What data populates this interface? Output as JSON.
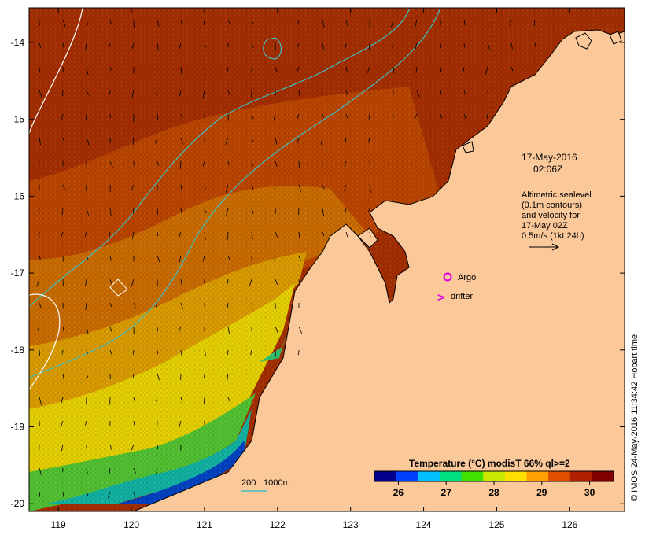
{
  "map": {
    "x_ticks": [
      "119",
      "120",
      "121",
      "122",
      "123",
      "124",
      "125",
      "126"
    ],
    "y_ticks": [
      "-14",
      "-15",
      "-16",
      "-17",
      "-18",
      "-19",
      "-20"
    ],
    "lon_range": [
      118.6,
      126.75
    ],
    "lat_range": [
      -20.1,
      -13.55
    ]
  },
  "annotation": {
    "date": "17-May-2016",
    "time": "02:06Z",
    "altimetry_lines": [
      "Altimetric sealevel",
      "(0.1m contours)",
      "and velocity for",
      "17-May 02Z",
      "0.5m/s (1kt 24h)"
    ]
  },
  "legend": {
    "argo_label": "Argo",
    "argo_color": "#e000e0",
    "drifter_symbol": ">",
    "drifter_label": "drifter",
    "drifter_color": "#e000e0",
    "bathy_label_200": "200",
    "bathy_label_1000": "1000m"
  },
  "colorbar": {
    "title": "Temperature  (°C) modisT 66% ql>=2",
    "ticks": [
      "26",
      "27",
      "28",
      "29",
      "30"
    ],
    "tick_values": [
      26,
      27,
      28,
      29,
      30
    ],
    "range": [
      25.5,
      30.5
    ],
    "colors": [
      "#00008b",
      "#0040ff",
      "#00c0ff",
      "#00e080",
      "#40e000",
      "#c8e800",
      "#ffe000",
      "#ffa000",
      "#e05000",
      "#b02000",
      "#800000"
    ]
  },
  "credit": "© IMOS 24-May-2016 11:34:42 Hobart time",
  "colors": {
    "land": "#fbc89a",
    "sea_warm": "#a32d00",
    "sea_mid": "#c35a00",
    "sea_orange": "#d98b00",
    "sea_yellow": "#e6d000",
    "sea_green": "#40c040",
    "sea_cyan": "#00b0b0",
    "sea_blue": "#0040c0",
    "contour_200": "#40c0c0",
    "contour_1000": "#ffffff"
  }
}
